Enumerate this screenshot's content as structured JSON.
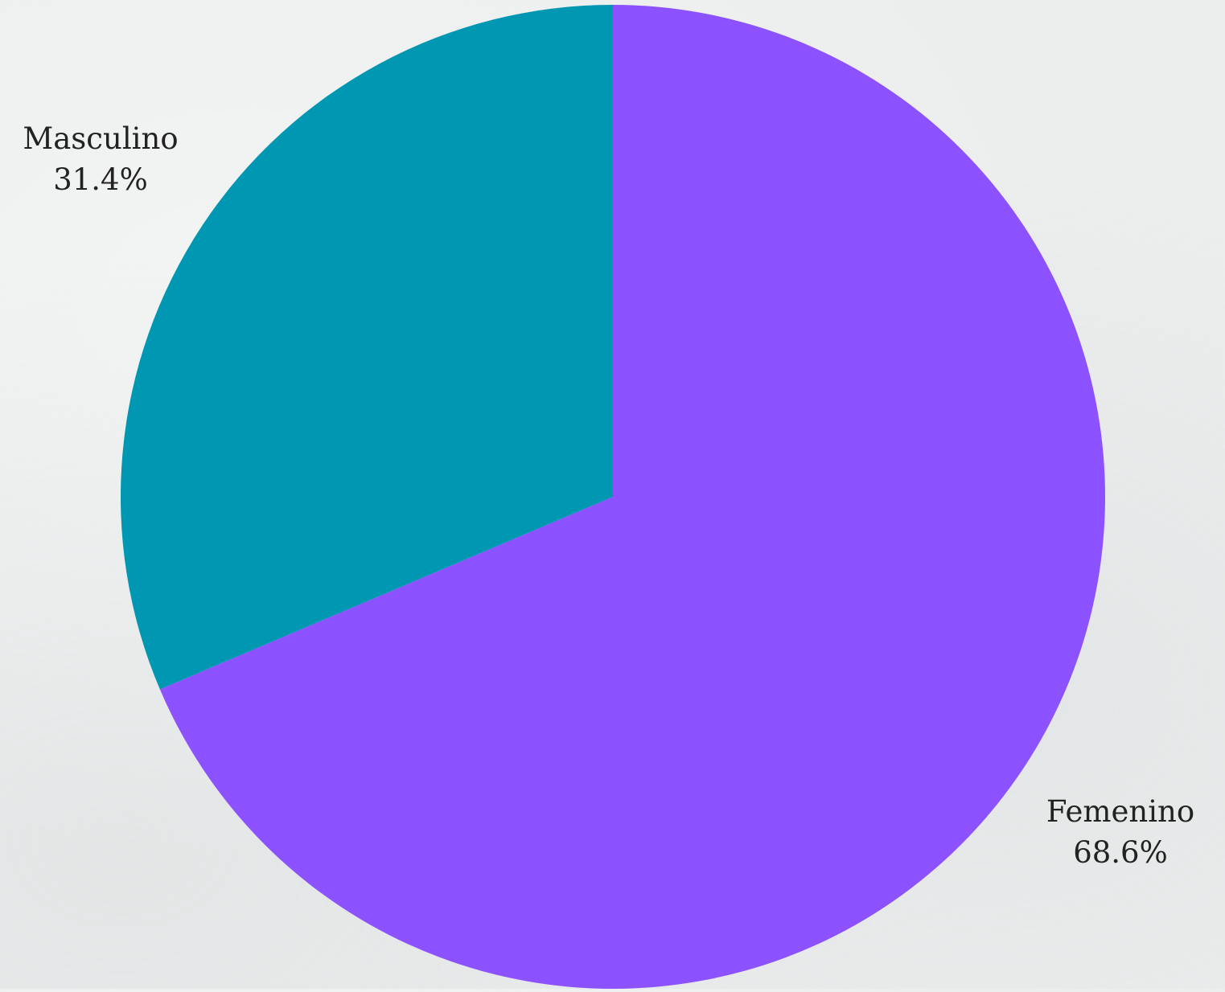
{
  "chart_data": {
    "type": "pie",
    "title": "",
    "start_angle_deg": 0,
    "direction": "clockwise",
    "slices": [
      {
        "label": "Femenino",
        "value": 68.6,
        "display": "68.6%",
        "color": "#8c52ff"
      },
      {
        "label": "Masculino",
        "value": 31.4,
        "display": "31.4%",
        "color": "#0097b2"
      }
    ]
  }
}
